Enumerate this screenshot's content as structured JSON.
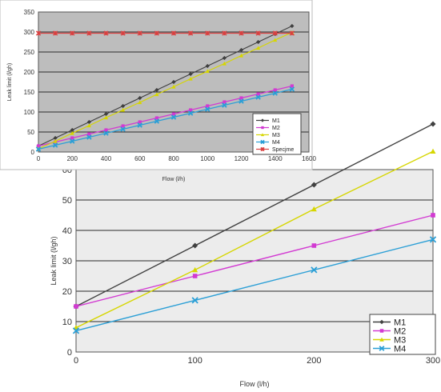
{
  "chart_data": [
    {
      "type": "line",
      "xlabel": "Flow (l/h)",
      "ylabel": "Leak limit (l/gh)",
      "xlim": [
        0,
        1600
      ],
      "ylim": [
        0,
        350
      ],
      "xticks": [
        "0",
        "200",
        "400",
        "600",
        "800",
        "1000",
        "1200",
        "1400",
        "1600"
      ],
      "yticks": [
        "0",
        "50",
        "100",
        "150",
        "200",
        "250",
        "300",
        "350"
      ],
      "grid": true,
      "legend_position": "bottom-right",
      "series": [
        {
          "name": "M1",
          "color": "#404040",
          "marker": "diamond",
          "x": [
            0,
            100,
            200,
            300,
            400,
            500,
            600,
            700,
            800,
            900,
            1000,
            1100,
            1200,
            1300,
            1400,
            1500
          ],
          "y": [
            15,
            35,
            55,
            75,
            95,
            115,
            135,
            155,
            175,
            195,
            215,
            235,
            255,
            275,
            295,
            315
          ]
        },
        {
          "name": "M2",
          "color": "#d23ad2",
          "marker": "square",
          "x": [
            0,
            100,
            200,
            300,
            400,
            500,
            600,
            700,
            800,
            900,
            1000,
            1100,
            1200,
            1300,
            1400,
            1500
          ],
          "y": [
            15,
            25,
            35,
            45,
            55,
            65,
            75,
            85,
            95,
            105,
            115,
            125,
            135,
            145,
            155,
            165
          ]
        },
        {
          "name": "M3",
          "color": "#d6d600",
          "marker": "triangle",
          "x": [
            0,
            100,
            200,
            300,
            400,
            500,
            600,
            700,
            800,
            900,
            1000,
            1100,
            1200,
            1300,
            1400,
            1500
          ],
          "y": [
            8,
            27,
            47,
            66,
            86,
            105,
            124,
            144,
            163,
            183,
            202,
            221,
            241,
            260,
            280,
            299
          ]
        },
        {
          "name": "M4",
          "color": "#2b9fd6",
          "marker": "x",
          "x": [
            0,
            100,
            200,
            300,
            400,
            500,
            600,
            700,
            800,
            900,
            1000,
            1100,
            1200,
            1300,
            1400,
            1500
          ],
          "y": [
            7,
            17,
            27,
            37,
            47,
            57,
            67,
            77,
            87,
            97,
            107,
            117,
            127,
            137,
            147,
            157
          ]
        },
        {
          "name": "Specjme",
          "color": "#d94040",
          "marker": "star",
          "x": [
            0,
            100,
            200,
            300,
            400,
            500,
            600,
            700,
            800,
            900,
            1000,
            1100,
            1200,
            1300,
            1400,
            1500
          ],
          "y": [
            297,
            297,
            297,
            297,
            297,
            297,
            297,
            297,
            297,
            297,
            297,
            297,
            297,
            297,
            297,
            297
          ]
        }
      ]
    },
    {
      "type": "line",
      "xlabel": "Flow (l/h)",
      "ylabel": "Leak limit (l/gh)",
      "xlim": [
        0,
        300
      ],
      "ylim": [
        0,
        60
      ],
      "xticks": [
        "0",
        "100",
        "200",
        "300"
      ],
      "yticks": [
        "0",
        "10",
        "20",
        "30",
        "40",
        "50",
        "60"
      ],
      "grid": true,
      "legend_position": "bottom-right",
      "series": [
        {
          "name": "M1",
          "color": "#404040",
          "marker": "diamond",
          "x": [
            0,
            100,
            200,
            300
          ],
          "y": [
            15,
            35,
            55,
            75
          ]
        },
        {
          "name": "M2",
          "color": "#d23ad2",
          "marker": "square",
          "x": [
            0,
            100,
            200,
            300
          ],
          "y": [
            15,
            25,
            35,
            45
          ]
        },
        {
          "name": "M3",
          "color": "#d6d600",
          "marker": "triangle",
          "x": [
            0,
            100,
            200,
            300
          ],
          "y": [
            8,
            27,
            47,
            66
          ]
        },
        {
          "name": "M4",
          "color": "#2b9fd6",
          "marker": "x",
          "x": [
            0,
            100,
            200,
            300
          ],
          "y": [
            7,
            17,
            27,
            37
          ]
        }
      ]
    }
  ]
}
